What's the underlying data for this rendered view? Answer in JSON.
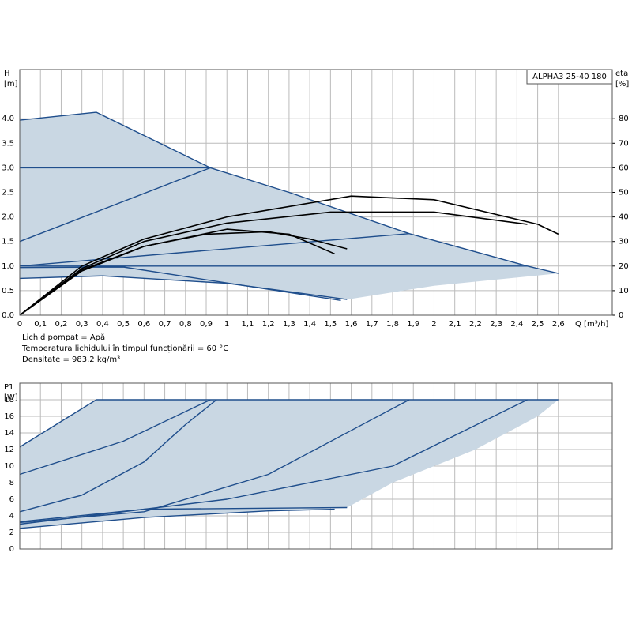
{
  "chart_data": [
    {
      "type": "line",
      "title": "ALPHA3 25-40 180",
      "ylabel": [
        "H",
        "[m]"
      ],
      "y2label": [
        "eta",
        "[%]"
      ],
      "xlabel": "Q [m³/h]",
      "notes": [
        "Lichid pompat = Apă",
        "Temperatura lichidului în timpul funcționării = 60 °C",
        "Densitate = 983.2 kg/m³"
      ],
      "xlim": [
        0,
        2.86
      ],
      "ylim": [
        0,
        5.0
      ],
      "y2lim": [
        0,
        100
      ],
      "grid": true,
      "xticks": [
        0,
        {
          "value": 0.1,
          "label": "0,1"
        },
        {
          "value": 0.2,
          "label": "0,2"
        },
        {
          "value": 0.3,
          "label": "0,3"
        },
        {
          "value": 0.4,
          "label": "0,4"
        },
        {
          "value": 0.5,
          "label": "0,5"
        },
        {
          "value": 0.6,
          "label": "0,6"
        },
        {
          "value": 0.7,
          "label": "0,7"
        },
        {
          "value": 0.8,
          "label": "0,8"
        },
        {
          "value": 0.9,
          "label": "0,9"
        },
        1,
        {
          "value": 1.1,
          "label": "1,1"
        },
        {
          "value": 1.2,
          "label": "1,2"
        },
        {
          "value": 1.3,
          "label": "1,3"
        },
        {
          "value": 1.4,
          "label": "1,4"
        },
        {
          "value": 1.5,
          "label": "1,5"
        },
        {
          "value": 1.6,
          "label": "1,6"
        },
        {
          "value": 1.7,
          "label": "1,7"
        },
        {
          "value": 1.8,
          "label": "1,8"
        },
        {
          "value": 1.9,
          "label": "1,9"
        },
        2,
        {
          "value": 2.1,
          "label": "2,1"
        },
        {
          "value": 2.2,
          "label": "2,2"
        },
        {
          "value": 2.3,
          "label": "2,3"
        },
        {
          "value": 2.4,
          "label": "2,4"
        },
        {
          "value": 2.5,
          "label": "2,5"
        },
        {
          "value": 2.6,
          "label": "2,6"
        }
      ],
      "yticks": [
        {
          "value": 0,
          "label": "0.0"
        },
        {
          "value": 0.5,
          "label": "0.5"
        },
        {
          "value": 1.0,
          "label": "1.0"
        },
        {
          "value": 1.5,
          "label": "1.5"
        },
        {
          "value": 2.0,
          "label": "2.0"
        },
        {
          "value": 2.5,
          "label": "2.5"
        },
        {
          "value": 3.0,
          "label": "3.0"
        },
        {
          "value": 3.5,
          "label": "3.5"
        },
        {
          "value": 4.0,
          "label": "4.0"
        }
      ],
      "y2ticks": [
        0,
        10,
        20,
        30,
        40,
        50,
        60,
        70,
        80
      ],
      "series": [
        {
          "fill": "#c9d7e3",
          "x": [
            0,
            0.37,
            0.92,
            1.3,
            1.88,
            2.45,
            2.6,
            2.0,
            1.58,
            1.0,
            0.4,
            0
          ],
          "values": [
            3.97,
            4.13,
            3.0,
            2.5,
            1.66,
            1.0,
            0.85,
            0.6,
            0.32,
            0.65,
            0.8,
            0.75
          ]
        },
        {
          "color": "#1f4e8c",
          "x": [
            0,
            0.37,
            0.92,
            1.3,
            1.88,
            2.45,
            2.6
          ],
          "values": [
            3.97,
            4.13,
            3.0,
            2.5,
            1.66,
            1.0,
            0.85
          ]
        },
        {
          "color": "#1f4e8c",
          "x": [
            0,
            0.92
          ],
          "values": [
            3.0,
            3.0
          ]
        },
        {
          "color": "#1f4e8c",
          "x": [
            0,
            0.92
          ],
          "values": [
            1.5,
            3.0
          ]
        },
        {
          "color": "#1f4e8c",
          "x": [
            0,
            1.88
          ],
          "values": [
            1.0,
            1.66
          ]
        },
        {
          "color": "#1f4e8c",
          "x": [
            0,
            2.45
          ],
          "values": [
            1.0,
            1.0
          ]
        },
        {
          "color": "#1f4e8c",
          "x": [
            0,
            0.4,
            1.0,
            1.58
          ],
          "values": [
            0.75,
            0.8,
            0.65,
            0.32
          ]
        },
        {
          "color": "#1f4e8c",
          "x": [
            0,
            0.5,
            1.55
          ],
          "values": [
            0.97,
            0.98,
            0.3
          ]
        },
        {
          "color": "#000000",
          "axis": "y2",
          "x": [
            0,
            0.3,
            0.6,
            1.0,
            1.6,
            2.0,
            2.5,
            2.6
          ],
          "values": [
            0,
            20,
            31,
            40,
            48.5,
            47,
            37,
            33
          ]
        },
        {
          "color": "#000000",
          "axis": "y2",
          "x": [
            0,
            0.3,
            0.6,
            1.0,
            1.5,
            2.0,
            2.45
          ],
          "values": [
            0,
            19,
            30,
            37.5,
            42,
            42,
            37
          ]
        },
        {
          "color": "#000000",
          "axis": "y2",
          "x": [
            0,
            0.3,
            0.6,
            0.9,
            1.2,
            1.4,
            1.58
          ],
          "values": [
            0,
            18.5,
            28,
            33,
            34,
            31,
            27
          ]
        },
        {
          "color": "#000000",
          "axis": "y2",
          "x": [
            0,
            0.3,
            0.6,
            1.0,
            1.3,
            1.52
          ],
          "values": [
            0,
            18,
            28,
            35,
            33,
            25
          ]
        }
      ]
    },
    {
      "type": "line",
      "ylabel": [
        "P1",
        "[W]"
      ],
      "xlim": [
        0,
        2.86
      ],
      "ylim": [
        0,
        20
      ],
      "grid": true,
      "yticks": [
        0,
        2,
        4,
        6,
        8,
        10,
        12,
        14,
        16,
        18
      ],
      "series": [
        {
          "fill": "#c9d7e3",
          "x": [
            0,
            0.37,
            2.6,
            2.5,
            2.2,
            1.8,
            1.58,
            0.6,
            0
          ],
          "values": [
            12.3,
            18,
            18,
            16,
            12,
            8,
            5.0,
            3.8,
            2.5
          ]
        },
        {
          "color": "#1f4e8c",
          "x": [
            0,
            0.37,
            2.6
          ],
          "values": [
            12.3,
            18,
            18
          ]
        },
        {
          "color": "#1f4e8c",
          "x": [
            0,
            0.5,
            0.92
          ],
          "values": [
            9,
            13,
            18
          ]
        },
        {
          "color": "#1f4e8c",
          "x": [
            0,
            0.3,
            0.6,
            0.8,
            0.95
          ],
          "values": [
            4.5,
            6.5,
            10.5,
            15,
            18
          ]
        },
        {
          "color": "#1f4e8c",
          "x": [
            0,
            0.6,
            1.2,
            1.88
          ],
          "values": [
            3.2,
            4.5,
            9,
            18
          ]
        },
        {
          "color": "#1f4e8c",
          "x": [
            0,
            1.0,
            1.8,
            2.45
          ],
          "values": [
            3,
            6,
            10,
            18
          ]
        },
        {
          "color": "#1f4e8c",
          "x": [
            0,
            0.6,
            1.2,
            1.52
          ],
          "values": [
            2.5,
            3.8,
            4.6,
            4.8
          ]
        },
        {
          "color": "#1f4e8c",
          "x": [
            0,
            0.6,
            1.58
          ],
          "values": [
            3.3,
            4.8,
            5.0
          ]
        }
      ]
    }
  ]
}
